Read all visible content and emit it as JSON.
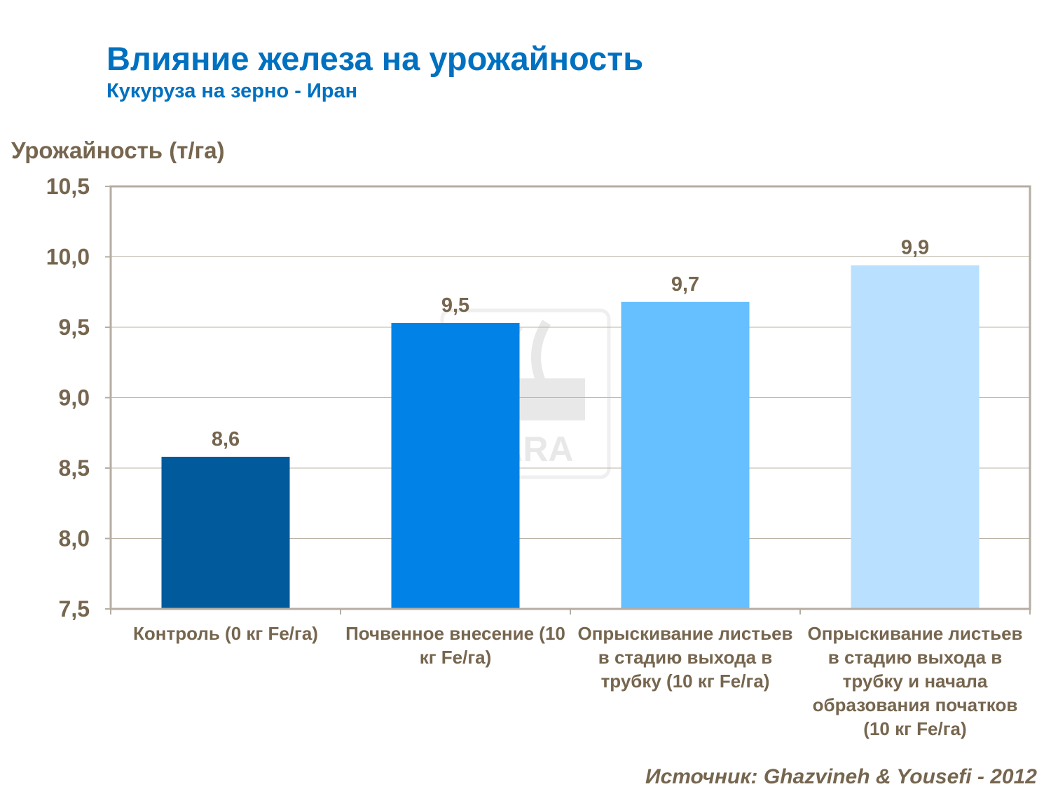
{
  "chart_data": {
    "type": "bar",
    "title": "Влияние железа на урожайность",
    "subtitle": "Кукуруза на зерно - Иран",
    "ylabel": "Урожайность (т/га)",
    "xlabel": "",
    "ylim": [
      7.5,
      10.5
    ],
    "yticks": [
      "7,5",
      "8,0",
      "8,5",
      "9,0",
      "9,5",
      "10,0",
      "10,5"
    ],
    "ytick_values": [
      7.5,
      8.0,
      8.5,
      9.0,
      9.5,
      10.0,
      10.5
    ],
    "grid": true,
    "categories": [
      "Контроль (0 кг Fe/га)",
      "Почвенное внесение (10 кг Fe/га)",
      "Опрыскивание листьев в стадию выхода в трубку (10 кг Fe/га)",
      "Опрыскивание листьев в стадию выхода в трубку и начала образования початков (10 кг Fe/га)"
    ],
    "values": [
      8.58,
      9.53,
      9.68,
      9.94
    ],
    "data_labels": [
      "8,6",
      "9,5",
      "9,7",
      "9,9"
    ],
    "colors": [
      "#005A9C",
      "#0082E6",
      "#66BFFF",
      "#B9E0FF"
    ],
    "source": "Источник: Ghazvineh & Yousefi - 2012",
    "watermark": "YARA"
  }
}
